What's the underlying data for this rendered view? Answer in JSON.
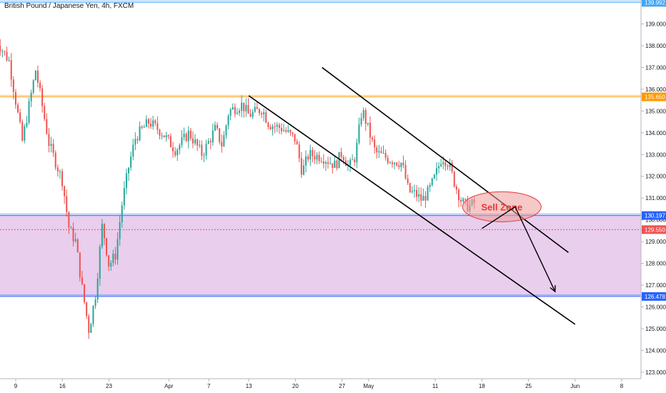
{
  "chart_data": {
    "type": "candlestick",
    "title": "British Pound / Japanese Yen, 4h, FXCM",
    "xlabel": "",
    "ylabel": "",
    "ylim": [
      122.7,
      140.1
    ],
    "grid": false,
    "price_scale_side": "right",
    "y_ticks": [
      "123.000",
      "124.000",
      "125.000",
      "126.000",
      "127.000",
      "128.000",
      "129.000",
      "130.000",
      "131.000",
      "132.000",
      "133.000",
      "134.000",
      "135.000",
      "136.000",
      "137.000",
      "138.000",
      "139.000"
    ],
    "x_ticks": [
      {
        "label": "9",
        "date": "2020-03-09"
      },
      {
        "label": "16",
        "date": "2020-03-16"
      },
      {
        "label": "23",
        "date": "2020-03-23"
      },
      {
        "label": "Apr",
        "date": "2020-04-01"
      },
      {
        "label": "7",
        "date": "2020-04-07"
      },
      {
        "label": "13",
        "date": "2020-04-13"
      },
      {
        "label": "20",
        "date": "2020-04-20"
      },
      {
        "label": "27",
        "date": "2020-04-27"
      },
      {
        "label": "May",
        "date": "2020-05-01"
      },
      {
        "label": "11",
        "date": "2020-05-11"
      },
      {
        "label": "18",
        "date": "2020-05-18"
      },
      {
        "label": "25",
        "date": "2020-05-25"
      },
      {
        "label": "Jun",
        "date": "2020-06-01"
      },
      {
        "label": "8",
        "date": "2020-06-08"
      }
    ],
    "price_path": [
      [
        "2020-03-06",
        138.3
      ],
      [
        "2020-03-08",
        137.3
      ],
      [
        "2020-03-10",
        133.6
      ],
      [
        "2020-03-12",
        136.9
      ],
      [
        "2020-03-14",
        133.5
      ],
      [
        "2020-03-16",
        131.8
      ],
      [
        "2020-03-17",
        129.6
      ],
      [
        "2020-03-18",
        129.0
      ],
      [
        "2020-03-19",
        126.8
      ],
      [
        "2020-03-20",
        124.9
      ],
      [
        "2020-03-21",
        126.6
      ],
      [
        "2020-03-22",
        129.8
      ],
      [
        "2020-03-23",
        127.9
      ],
      [
        "2020-03-24",
        128.4
      ],
      [
        "2020-03-25",
        130.8
      ],
      [
        "2020-03-26",
        132.5
      ],
      [
        "2020-03-27",
        133.8
      ],
      [
        "2020-03-29",
        134.5
      ],
      [
        "2020-03-31",
        134.0
      ],
      [
        "2020-04-02",
        133.2
      ],
      [
        "2020-04-04",
        134.0
      ],
      [
        "2020-04-06",
        133.0
      ],
      [
        "2020-04-08",
        134.2
      ],
      [
        "2020-04-09",
        133.4
      ],
      [
        "2020-04-10",
        135.0
      ],
      [
        "2020-04-12",
        135.3
      ],
      [
        "2020-04-13",
        134.8
      ],
      [
        "2020-04-15",
        135.1
      ],
      [
        "2020-04-16",
        134.4
      ],
      [
        "2020-04-18",
        134.2
      ],
      [
        "2020-04-20",
        133.7
      ],
      [
        "2020-04-21",
        132.2
      ],
      [
        "2020-04-22",
        133.0
      ],
      [
        "2020-04-24",
        132.9
      ],
      [
        "2020-04-26",
        132.5
      ],
      [
        "2020-04-27",
        133.1
      ],
      [
        "2020-04-28",
        132.4
      ],
      [
        "2020-04-29",
        132.9
      ],
      [
        "2020-04-30",
        135.1
      ],
      [
        "2020-05-01",
        134.1
      ],
      [
        "2020-05-02",
        133.1
      ],
      [
        "2020-05-04",
        132.8
      ],
      [
        "2020-05-06",
        132.6
      ],
      [
        "2020-05-07",
        131.3
      ],
      [
        "2020-05-08",
        131.2
      ],
      [
        "2020-05-09",
        130.9
      ],
      [
        "2020-05-10",
        131.3
      ],
      [
        "2020-05-11",
        132.0
      ],
      [
        "2020-05-12",
        132.9
      ],
      [
        "2020-05-13",
        132.6
      ],
      [
        "2020-05-14",
        131.6
      ],
      [
        "2020-05-15",
        130.8
      ],
      [
        "2020-05-16",
        130.6
      ],
      [
        "2020-05-17",
        130.8
      ]
    ],
    "horizontal_levels": [
      {
        "value": 139.992,
        "label": "139.992",
        "color": "#42a5f5",
        "style": "solid"
      },
      {
        "value": 135.65,
        "label": "135.650",
        "color": "#ff9800",
        "style": "solid"
      },
      {
        "value": 130.197,
        "label": "130.197",
        "color": "#2962ff",
        "style": "solid"
      },
      {
        "value": 129.55,
        "label": "129.550",
        "color": "#ef5350",
        "style": "dotted"
      },
      {
        "value": 126.478,
        "label": "126.478",
        "color": "#2962ff",
        "style": "solid"
      }
    ],
    "zone": {
      "from": 126.478,
      "to": 130.197,
      "color": "#e1bee7"
    },
    "channel_lines": [
      {
        "start": [
          "2020-04-13",
          135.7
        ],
        "end": [
          "2020-06-01",
          125.2
        ]
      },
      {
        "start": [
          "2020-04-24",
          137.0
        ],
        "end": [
          "2020-05-31",
          128.5
        ]
      }
    ],
    "projection_path": [
      [
        "2020-05-18",
        129.6
      ],
      [
        "2020-05-23",
        130.6
      ],
      [
        "2020-05-29",
        126.7
      ]
    ],
    "annotation": {
      "text": "Sell Zone",
      "date": "2020-05-21",
      "price": 130.6,
      "color": "#e53935"
    },
    "colors": {
      "up": "#26a69a",
      "down": "#ef5350",
      "text": "#131722"
    }
  }
}
